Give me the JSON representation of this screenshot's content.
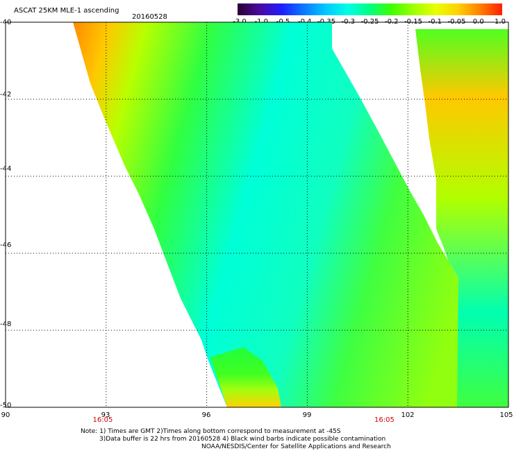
{
  "header": {
    "title": "ASCAT 25KM MLE-1 ascending",
    "date": "20160528"
  },
  "colorbar": {
    "ticks": [
      "-3.0",
      "-1.0",
      "-0.5",
      "-0.4",
      "-0.35",
      "-0.3",
      "-0.25",
      "-0.2",
      "-0.15",
      "-0.1",
      "-0.05",
      "0.0",
      "1.0"
    ],
    "colors": [
      "#2a0030",
      "#4b0aa0",
      "#1d1dff",
      "#0a78ff",
      "#00c8ff",
      "#00ffe6",
      "#00ff80",
      "#40ff00",
      "#a0ff00",
      "#e8ff00",
      "#ffd000",
      "#ff8000",
      "#ff1e00"
    ]
  },
  "map": {
    "lat_labels": [
      "-40",
      "-42",
      "-44",
      "-46",
      "-48",
      "-50"
    ],
    "lon_labels": [
      "90",
      "93",
      "96",
      "99",
      "102",
      "105"
    ],
    "lat_range": [
      -50,
      -40
    ],
    "lon_range": [
      90,
      105
    ],
    "grid": true,
    "pass_times": [
      {
        "label": "16:05",
        "lon": 92.9
      },
      {
        "label": "16:05",
        "lon": 101.3
      }
    ]
  },
  "notes": {
    "line1": "Note: 1) Times are GMT 2)Times along bottom correspond to measurement at -45S",
    "line2": "3)Data buffer is 22 hrs from 20160528 4) Black wind barbs indicate possible contamination",
    "line3": "NOAA/NESDIS/Center for Satellite Applications and Research"
  }
}
